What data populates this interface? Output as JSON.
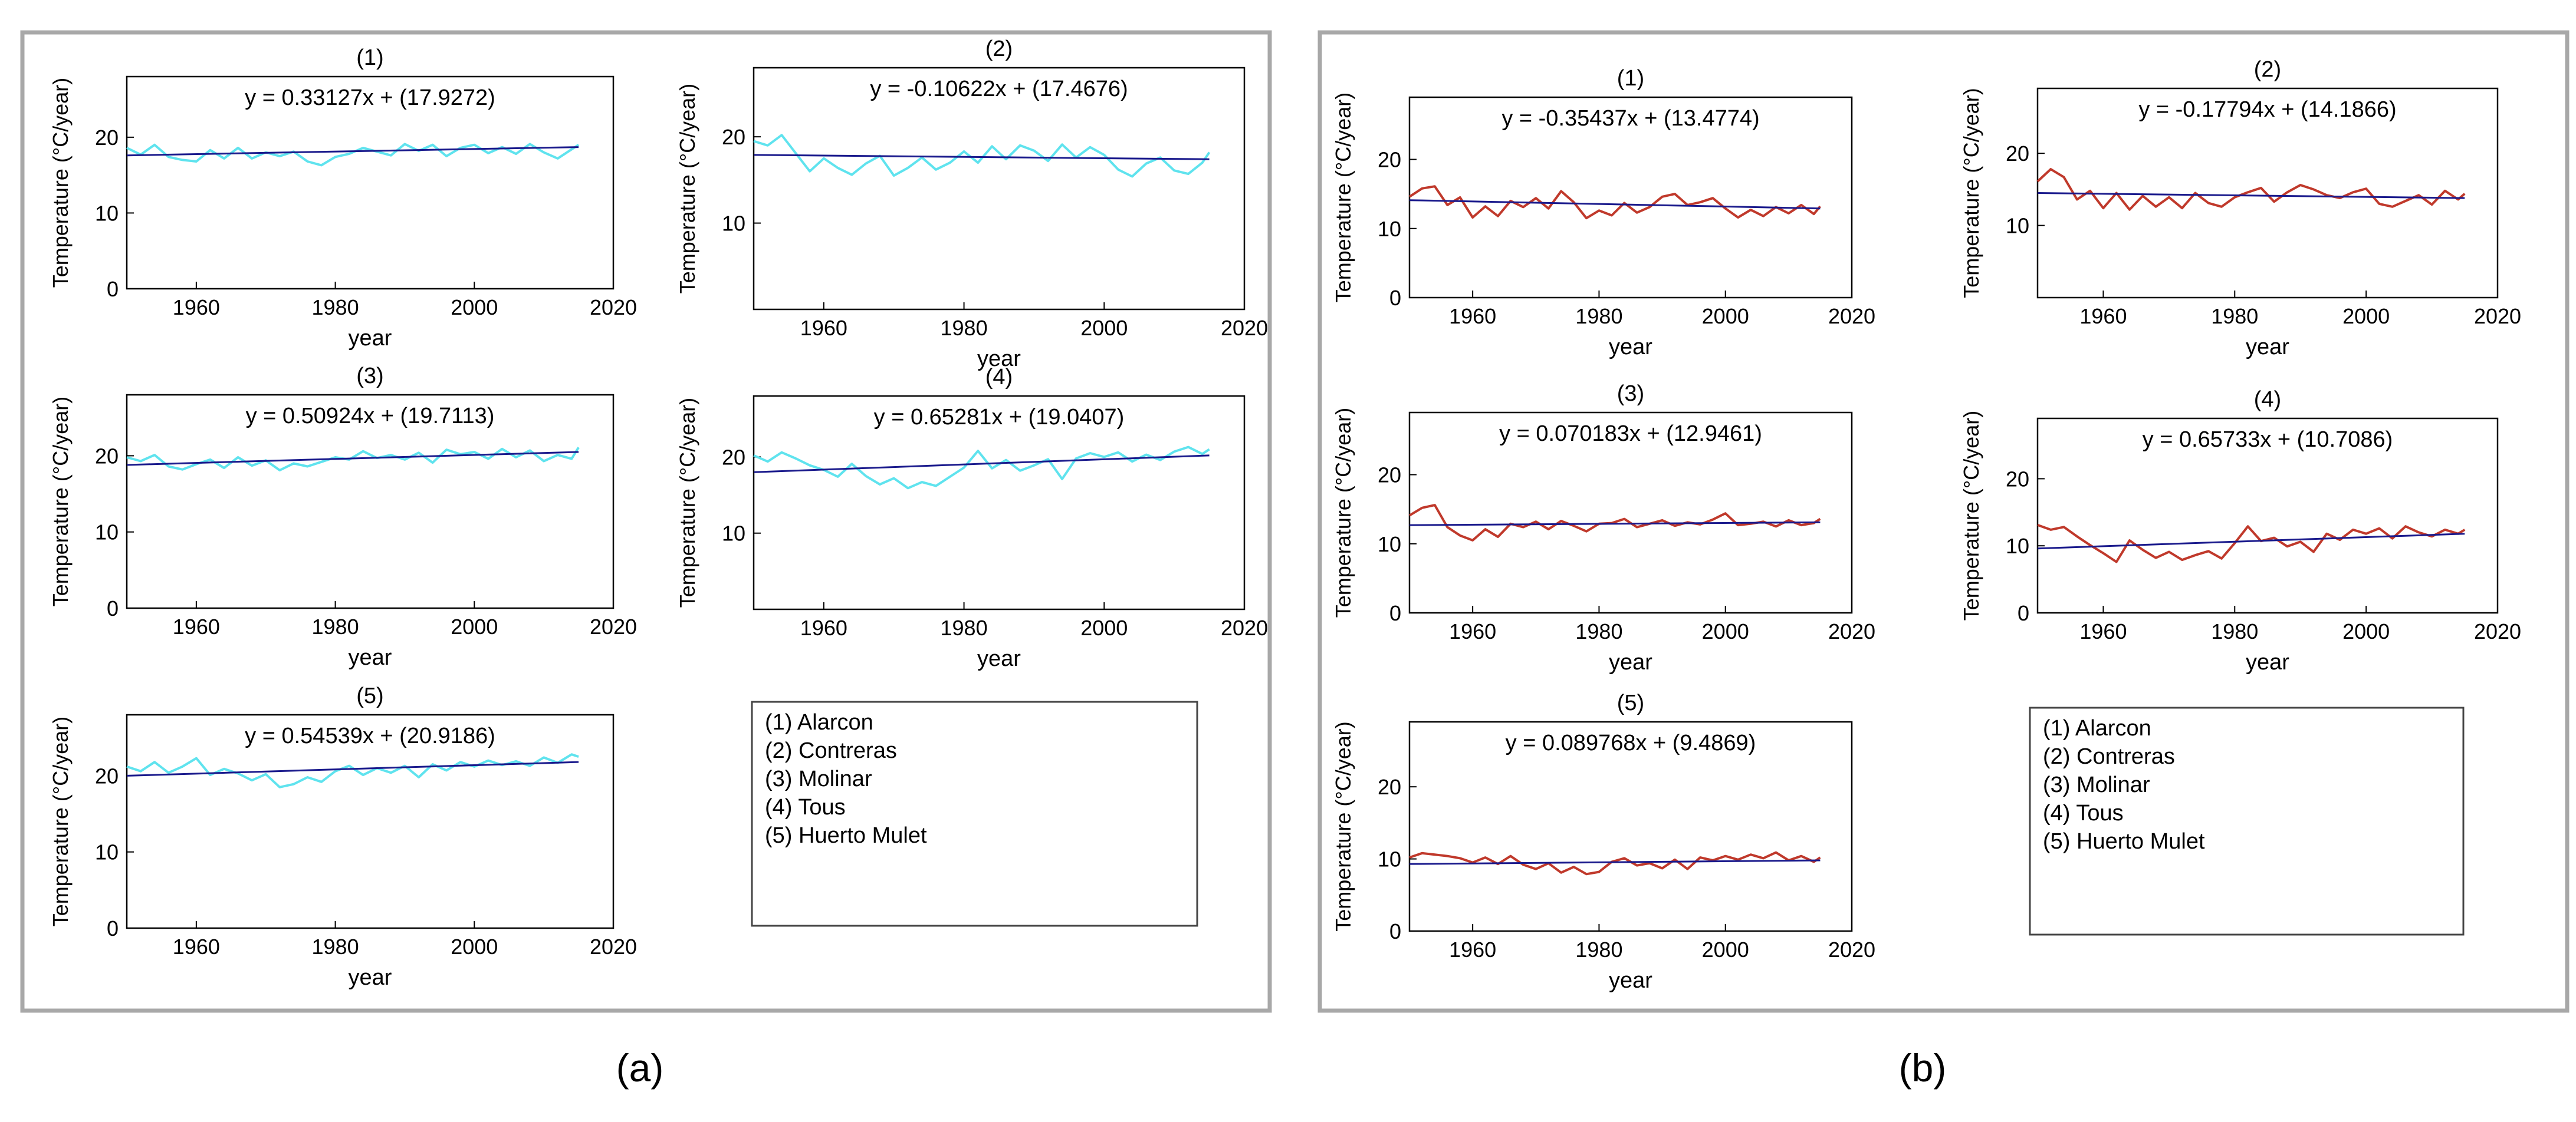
{
  "figure": {
    "caption_a": "(a)",
    "caption_b": "(b)"
  },
  "legend": {
    "entries": [
      "(1) Alarcon",
      "(2) Contreras",
      "(3) Molinar",
      "(4) Tous",
      "(5) Huerto Mulet"
    ]
  },
  "colors": {
    "panel_a_series": "#5fe3ee",
    "panel_b_series": "#c0392b",
    "trend": "#1a1a8c",
    "panel_border": "#a8a8a8"
  },
  "chart_data": [
    {
      "type": "line",
      "panel": "a",
      "subplots": [
        {
          "title": "(1)",
          "equation": "y = 0.33127x + (17.9272)",
          "xlabel": "year",
          "ylabel": "Temperature (°C/year)",
          "xlim": [
            1950,
            2020
          ],
          "ylim": [
            0,
            28
          ],
          "xticks": [
            1960,
            1980,
            2000,
            2020
          ],
          "yticks": [
            0,
            10,
            20
          ],
          "trend": [
            [
              1950,
              17.6
            ],
            [
              2015,
              18.7
            ]
          ],
          "x": [
            1950,
            1952,
            1954,
            1956,
            1958,
            1960,
            1962,
            1964,
            1966,
            1968,
            1970,
            1972,
            1974,
            1976,
            1978,
            1980,
            1982,
            1984,
            1986,
            1988,
            1990,
            1992,
            1994,
            1996,
            1998,
            2000,
            2002,
            2004,
            2006,
            2008,
            2010,
            2012,
            2014,
            2015
          ],
          "values": [
            18.6,
            17.7,
            19.0,
            17.4,
            17.0,
            16.8,
            18.3,
            17.2,
            18.6,
            17.2,
            18.0,
            17.5,
            18.1,
            16.8,
            16.3,
            17.4,
            17.8,
            18.6,
            18.1,
            17.6,
            19.1,
            18.2,
            19.0,
            17.5,
            18.6,
            19.0,
            17.9,
            18.7,
            17.8,
            19.1,
            18.0,
            17.2,
            18.4,
            19.0
          ]
        },
        {
          "title": "(2)",
          "equation": "y = -0.10622x + (17.4676)",
          "xlabel": "year",
          "ylabel": "Temperature (°C/year)",
          "xlim": [
            1950,
            2020
          ],
          "ylim": [
            0,
            28
          ],
          "xticks": [
            1960,
            1980,
            2000,
            2020
          ],
          "yticks": [
            10,
            20
          ],
          "trend": [
            [
              1950,
              17.9
            ],
            [
              2015,
              17.4
            ]
          ],
          "x": [
            1950,
            1952,
            1954,
            1956,
            1958,
            1960,
            1962,
            1964,
            1966,
            1968,
            1970,
            1972,
            1974,
            1976,
            1978,
            1980,
            1982,
            1984,
            1986,
            1988,
            1990,
            1992,
            1994,
            1996,
            1998,
            2000,
            2002,
            2004,
            2006,
            2008,
            2010,
            2012,
            2014,
            2015
          ],
          "values": [
            19.5,
            19.0,
            20.2,
            18.1,
            16.0,
            17.5,
            16.4,
            15.6,
            16.9,
            17.8,
            15.5,
            16.4,
            17.6,
            16.2,
            17.0,
            18.3,
            17.0,
            18.9,
            17.4,
            19.0,
            18.4,
            17.2,
            19.1,
            17.6,
            18.8,
            17.9,
            16.2,
            15.4,
            16.9,
            17.6,
            16.1,
            15.7,
            17.0,
            18.2
          ]
        },
        {
          "title": "(3)",
          "equation": "y = 0.50924x + (19.7113)",
          "xlabel": "year",
          "ylabel": "Temperature (°C/year)",
          "xlim": [
            1950,
            2020
          ],
          "ylim": [
            0,
            28
          ],
          "xticks": [
            1960,
            1980,
            2000,
            2020
          ],
          "yticks": [
            0,
            10,
            20
          ],
          "trend": [
            [
              1950,
              18.8
            ],
            [
              2015,
              20.5
            ]
          ],
          "x": [
            1950,
            1952,
            1954,
            1956,
            1958,
            1960,
            1962,
            1964,
            1966,
            1968,
            1970,
            1972,
            1974,
            1976,
            1978,
            1980,
            1982,
            1984,
            1986,
            1988,
            1990,
            1992,
            1994,
            1996,
            1998,
            2000,
            2002,
            2004,
            2006,
            2008,
            2010,
            2012,
            2014,
            2015
          ],
          "values": [
            19.8,
            19.3,
            20.1,
            18.6,
            18.2,
            18.9,
            19.5,
            18.4,
            19.8,
            18.7,
            19.4,
            18.1,
            19.0,
            18.6,
            19.2,
            19.8,
            19.5,
            20.6,
            19.7,
            20.1,
            19.5,
            20.4,
            19.1,
            20.8,
            20.2,
            20.5,
            19.6,
            20.9,
            19.8,
            20.7,
            19.3,
            20.1,
            19.6,
            21.1
          ]
        },
        {
          "title": "(4)",
          "equation": "y = 0.65281x + (19.0407)",
          "xlabel": "year",
          "ylabel": "Temperature (°C/year)",
          "xlim": [
            1950,
            2020
          ],
          "ylim": [
            0,
            28
          ],
          "xticks": [
            1960,
            1980,
            2000,
            2020
          ],
          "yticks": [
            10,
            20
          ],
          "trend": [
            [
              1950,
              18.0
            ],
            [
              2015,
              20.2
            ]
          ],
          "x": [
            1950,
            1952,
            1954,
            1956,
            1958,
            1960,
            1962,
            1964,
            1966,
            1968,
            1970,
            1972,
            1974,
            1976,
            1978,
            1980,
            1982,
            1984,
            1986,
            1988,
            1990,
            1992,
            1994,
            1996,
            1998,
            2000,
            2002,
            2004,
            2006,
            2008,
            2010,
            2012,
            2014,
            2015
          ],
          "values": [
            20.2,
            19.4,
            20.6,
            19.8,
            18.9,
            18.3,
            17.4,
            19.1,
            17.5,
            16.4,
            17.2,
            15.9,
            16.7,
            16.2,
            17.4,
            18.6,
            20.8,
            18.5,
            19.6,
            18.2,
            18.9,
            19.7,
            17.1,
            19.8,
            20.5,
            20.0,
            20.6,
            19.4,
            20.3,
            19.6,
            20.7,
            21.3,
            20.4,
            21.0
          ]
        },
        {
          "title": "(5)",
          "equation": "y = 0.54539x + (20.9186)",
          "xlabel": "year",
          "ylabel": "Temperature (°C/year)",
          "xlim": [
            1950,
            2020
          ],
          "ylim": [
            0,
            28
          ],
          "xticks": [
            1960,
            1980,
            2000,
            2020
          ],
          "yticks": [
            0,
            10,
            20
          ],
          "trend": [
            [
              1950,
              20.0
            ],
            [
              2015,
              21.8
            ]
          ],
          "x": [
            1950,
            1952,
            1954,
            1956,
            1958,
            1960,
            1962,
            1964,
            1966,
            1968,
            1970,
            1972,
            1974,
            1976,
            1978,
            1980,
            1982,
            1984,
            1986,
            1988,
            1990,
            1992,
            1994,
            1996,
            1998,
            2000,
            2002,
            2004,
            2006,
            2008,
            2010,
            2012,
            2014,
            2015
          ],
          "values": [
            21.2,
            20.6,
            21.8,
            20.4,
            21.2,
            22.3,
            20.1,
            20.9,
            20.3,
            19.4,
            20.2,
            18.5,
            18.9,
            19.8,
            19.2,
            20.6,
            21.3,
            20.1,
            21.0,
            20.4,
            21.3,
            19.8,
            21.5,
            20.7,
            21.8,
            21.2,
            22.0,
            21.4,
            21.9,
            21.3,
            22.4,
            21.7,
            22.8,
            22.5
          ]
        }
      ]
    },
    {
      "type": "line",
      "panel": "b",
      "subplots": [
        {
          "title": "(1)",
          "equation": "y = -0.35437x + (13.4774)",
          "xlabel": "year",
          "ylabel": "Temperature (°C/year)",
          "xlim": [
            1950,
            2020
          ],
          "ylim": [
            0,
            29
          ],
          "xticks": [
            1960,
            1980,
            2000,
            2020
          ],
          "yticks": [
            0,
            10,
            20
          ],
          "trend": [
            [
              1950,
              14.1
            ],
            [
              2015,
              12.9
            ]
          ],
          "x": [
            1950,
            1952,
            1954,
            1956,
            1958,
            1960,
            1962,
            1964,
            1966,
            1968,
            1970,
            1972,
            1974,
            1976,
            1978,
            1980,
            1982,
            1984,
            1986,
            1988,
            1990,
            1992,
            1994,
            1996,
            1998,
            2000,
            2002,
            2004,
            2006,
            2008,
            2010,
            2012,
            2014,
            2015
          ],
          "values": [
            14.6,
            15.8,
            16.1,
            13.4,
            14.5,
            11.6,
            13.2,
            11.8,
            14.0,
            13.1,
            14.4,
            12.9,
            15.4,
            13.8,
            11.5,
            12.6,
            11.9,
            13.7,
            12.3,
            13.1,
            14.6,
            15.0,
            13.4,
            13.8,
            14.4,
            12.9,
            11.6,
            12.7,
            11.8,
            13.1,
            12.2,
            13.4,
            12.1,
            13.2
          ]
        },
        {
          "title": "(2)",
          "equation": "y = -0.17794x + (14.1866)",
          "xlabel": "year",
          "ylabel": "Temperature (°C/year)",
          "xlim": [
            1950,
            2020
          ],
          "ylim": [
            0,
            29
          ],
          "xticks": [
            1960,
            1980,
            2000,
            2020
          ],
          "yticks": [
            10,
            20
          ],
          "trend": [
            [
              1950,
              14.5
            ],
            [
              2015,
              13.8
            ]
          ],
          "x": [
            1950,
            1952,
            1954,
            1956,
            1958,
            1960,
            1962,
            1964,
            1966,
            1968,
            1970,
            1972,
            1974,
            1976,
            1978,
            1980,
            1982,
            1984,
            1986,
            1988,
            1990,
            1992,
            1994,
            1996,
            1998,
            2000,
            2002,
            2004,
            2006,
            2008,
            2010,
            2012,
            2014,
            2015
          ],
          "values": [
            16.1,
            17.8,
            16.7,
            13.6,
            14.8,
            12.4,
            14.5,
            12.2,
            14.1,
            12.6,
            13.9,
            12.4,
            14.5,
            13.1,
            12.6,
            13.9,
            14.6,
            15.2,
            13.3,
            14.6,
            15.6,
            15.0,
            14.2,
            13.8,
            14.6,
            15.1,
            13.0,
            12.6,
            13.4,
            14.2,
            12.9,
            14.8,
            13.6,
            14.4
          ]
        },
        {
          "title": "(3)",
          "equation": "y = 0.070183x + (12.9461)",
          "xlabel": "year",
          "ylabel": "Temperature (°C/year)",
          "xlim": [
            1950,
            2020
          ],
          "ylim": [
            0,
            29
          ],
          "xticks": [
            1960,
            1980,
            2000,
            2020
          ],
          "yticks": [
            0,
            10,
            20
          ],
          "trend": [
            [
              1950,
              12.7
            ],
            [
              2015,
              13.1
            ]
          ],
          "x": [
            1950,
            1952,
            1954,
            1956,
            1958,
            1960,
            1962,
            1964,
            1966,
            1968,
            1970,
            1972,
            1974,
            1976,
            1978,
            1980,
            1982,
            1984,
            1986,
            1988,
            1990,
            1992,
            1994,
            1996,
            1998,
            2000,
            2002,
            2004,
            2006,
            2008,
            2010,
            2012,
            2014,
            2015
          ],
          "values": [
            14.1,
            15.2,
            15.6,
            12.4,
            11.2,
            10.5,
            12.1,
            11.0,
            12.9,
            12.4,
            13.2,
            12.1,
            13.3,
            12.6,
            11.8,
            12.9,
            13.0,
            13.6,
            12.4,
            12.9,
            13.4,
            12.6,
            13.1,
            12.8,
            13.5,
            14.4,
            12.7,
            12.9,
            13.2,
            12.5,
            13.4,
            12.7,
            13.0,
            13.6
          ]
        },
        {
          "title": "(4)",
          "equation": "y = 0.65733x + (10.7086)",
          "xlabel": "year",
          "ylabel": "Temperature (°C/year)",
          "xlim": [
            1950,
            2020
          ],
          "ylim": [
            0,
            29
          ],
          "xticks": [
            1960,
            1980,
            2000,
            2020
          ],
          "yticks": [
            0,
            10,
            20
          ],
          "trend": [
            [
              1950,
              9.6
            ],
            [
              2015,
              11.8
            ]
          ],
          "x": [
            1950,
            1952,
            1954,
            1956,
            1958,
            1960,
            1962,
            1964,
            1966,
            1968,
            1970,
            1972,
            1974,
            1976,
            1978,
            1980,
            1982,
            1984,
            1986,
            1988,
            1990,
            1992,
            1994,
            1996,
            1998,
            2000,
            2002,
            2004,
            2006,
            2008,
            2010,
            2012,
            2014,
            2015
          ],
          "values": [
            13.1,
            12.4,
            12.8,
            11.4,
            10.1,
            8.9,
            7.6,
            10.8,
            9.4,
            8.2,
            9.1,
            7.9,
            8.6,
            9.2,
            8.1,
            10.4,
            12.9,
            10.7,
            11.2,
            9.9,
            10.6,
            9.1,
            11.8,
            10.9,
            12.4,
            11.8,
            12.6,
            11.1,
            12.9,
            12.0,
            11.4,
            12.4,
            11.8,
            12.4
          ]
        },
        {
          "title": "(5)",
          "equation": "y = 0.089768x + (9.4869)",
          "xlabel": "year",
          "ylabel": "Temperature (°C/year)",
          "xlim": [
            1950,
            2020
          ],
          "ylim": [
            0,
            29
          ],
          "xticks": [
            1960,
            1980,
            2000,
            2020
          ],
          "yticks": [
            0,
            10,
            20
          ],
          "trend": [
            [
              1950,
              9.3
            ],
            [
              2015,
              9.8
            ]
          ],
          "x": [
            1950,
            1952,
            1954,
            1956,
            1958,
            1960,
            1962,
            1964,
            1966,
            1968,
            1970,
            1972,
            1974,
            1976,
            1978,
            1980,
            1982,
            1984,
            1986,
            1988,
            1990,
            1992,
            1994,
            1996,
            1998,
            2000,
            2002,
            2004,
            2006,
            2008,
            2010,
            2012,
            2014,
            2015
          ],
          "values": [
            10.2,
            10.8,
            10.6,
            10.4,
            10.1,
            9.5,
            10.2,
            9.3,
            10.4,
            9.2,
            8.6,
            9.4,
            8.1,
            8.9,
            7.9,
            8.2,
            9.6,
            10.1,
            9.1,
            9.4,
            8.7,
            9.9,
            8.6,
            10.2,
            9.8,
            10.4,
            9.9,
            10.6,
            10.1,
            10.9,
            9.8,
            10.4,
            9.6,
            10.2
          ]
        }
      ]
    }
  ]
}
